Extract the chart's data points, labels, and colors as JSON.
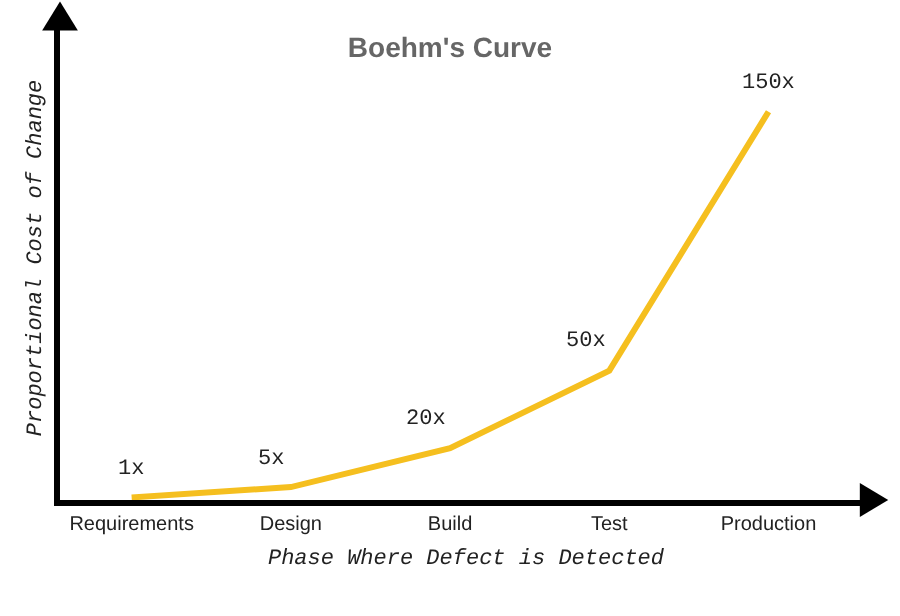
{
  "chart_data": {
    "type": "line",
    "title": "Boehm's Curve",
    "xlabel": "Phase Where Defect is Detected",
    "ylabel": "Proportional Cost of Change",
    "categories": [
      "Requirements",
      "Design",
      "Build",
      "Test",
      "Production"
    ],
    "series": [
      {
        "color": "#f5bf1f",
        "values": [
          1,
          5,
          20,
          50,
          150
        ],
        "value_labels": [
          "1x",
          "5x",
          "20x",
          "50x",
          "150x"
        ]
      }
    ],
    "ylim": [
      0,
      187
    ],
    "marker": "none",
    "line_style": "solid"
  }
}
